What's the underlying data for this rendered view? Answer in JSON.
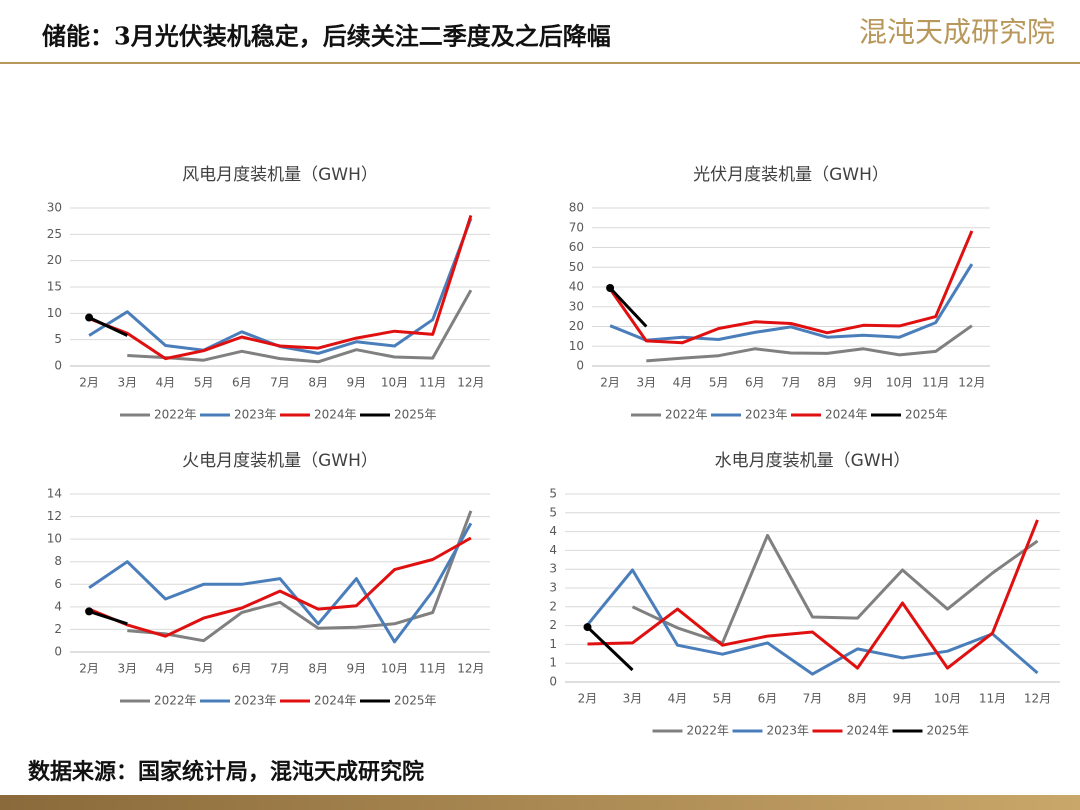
{
  "title": "储能：3月光伏装机稳定，后续关注二季度及之后降幅",
  "logo": "混沌天成研究院",
  "source": "数据来源：国家统计局，混沌天成研究院",
  "chart_data": [
    {
      "type": "line",
      "title": "风电月度装机量（GWH）",
      "categories": [
        "2月",
        "3月",
        "4月",
        "5月",
        "6月",
        "7月",
        "8月",
        "9月",
        "10月",
        "11月",
        "12月"
      ],
      "ylim": [
        0,
        30
      ],
      "yticks": [
        0,
        5,
        10,
        15,
        20,
        25,
        30
      ],
      "series": [
        {
          "name": "2022年",
          "color": "#808080",
          "values": [
            null,
            2.0,
            1.6,
            1.1,
            2.8,
            1.4,
            0.8,
            3.1,
            1.7,
            1.5,
            14.4
          ]
        },
        {
          "name": "2023年",
          "color": "#4a7ebb",
          "values": [
            5.8,
            10.3,
            3.9,
            3.0,
            6.5,
            3.7,
            2.4,
            4.6,
            3.8,
            8.8,
            28.0
          ]
        },
        {
          "name": "2024年",
          "color": "#e01010",
          "values": [
            9.0,
            6.2,
            1.4,
            2.9,
            5.5,
            3.8,
            3.4,
            5.3,
            6.6,
            6.0,
            28.6
          ]
        },
        {
          "name": "2025年",
          "color": "#000000",
          "values": [
            9.2,
            5.8,
            null,
            null,
            null,
            null,
            null,
            null,
            null,
            null,
            null
          ]
        }
      ]
    },
    {
      "type": "line",
      "title": "光伏月度装机量（GWH）",
      "categories": [
        "2月",
        "3月",
        "4月",
        "5月",
        "6月",
        "7月",
        "8月",
        "9月",
        "10月",
        "11月",
        "12月"
      ],
      "ylim": [
        0,
        80
      ],
      "yticks": [
        0,
        10,
        20,
        30,
        40,
        50,
        60,
        70,
        80
      ],
      "series": [
        {
          "name": "2022年",
          "color": "#808080",
          "values": [
            null,
            2.6,
            4.0,
            5.2,
            8.7,
            6.6,
            6.4,
            8.7,
            5.6,
            7.4,
            20.4
          ]
        },
        {
          "name": "2023年",
          "color": "#4a7ebb",
          "values": [
            20.4,
            13.0,
            14.6,
            13.4,
            17.0,
            19.8,
            14.6,
            15.6,
            14.6,
            22.0,
            51.6
          ]
        },
        {
          "name": "2024年",
          "color": "#e01010",
          "values": [
            39.0,
            12.7,
            11.8,
            19.0,
            22.4,
            21.5,
            16.8,
            20.6,
            20.3,
            25.0,
            68.4
          ]
        },
        {
          "name": "2025年",
          "color": "#000000",
          "values": [
            39.5,
            20.0,
            null,
            null,
            null,
            null,
            null,
            null,
            null,
            null,
            null
          ]
        }
      ]
    },
    {
      "type": "line",
      "title": "火电月度装机量（GWH）",
      "categories": [
        "2月",
        "3月",
        "4月",
        "5月",
        "6月",
        "7月",
        "8月",
        "9月",
        "10月",
        "11月",
        "12月"
      ],
      "ylim": [
        0,
        14
      ],
      "yticks": [
        0,
        2,
        4,
        6,
        8,
        10,
        12,
        14
      ],
      "series": [
        {
          "name": "2022年",
          "color": "#808080",
          "values": [
            null,
            1.9,
            1.6,
            1.0,
            3.5,
            4.4,
            2.1,
            2.2,
            2.5,
            3.5,
            12.5
          ]
        },
        {
          "name": "2023年",
          "color": "#4a7ebb",
          "values": [
            5.7,
            8.0,
            4.7,
            6.0,
            6.0,
            6.5,
            2.5,
            6.5,
            0.9,
            5.4,
            11.4
          ]
        },
        {
          "name": "2024年",
          "color": "#e01010",
          "values": [
            3.8,
            2.4,
            1.4,
            3.0,
            3.9,
            5.4,
            3.8,
            4.1,
            7.3,
            8.2,
            10.1
          ]
        },
        {
          "name": "2025年",
          "color": "#000000",
          "values": [
            3.6,
            2.5,
            null,
            null,
            null,
            null,
            null,
            null,
            null,
            null,
            null
          ]
        }
      ]
    },
    {
      "type": "line",
      "title": "水电月度装机量（GWH）",
      "categories": [
        "2月",
        "3月",
        "4月",
        "5月",
        "6月",
        "7月",
        "8月",
        "9月",
        "10月",
        "11月",
        "12月"
      ],
      "ylim": [
        0,
        5
      ],
      "yticks": [
        0,
        {
          "value": 0.5,
          "label": "1"
        },
        1,
        {
          "value": 1.5,
          "label": "2"
        },
        2,
        {
          "value": 2.5,
          "label": "3"
        },
        3,
        {
          "value": 3.5,
          "label": "4"
        },
        4,
        {
          "value": 4.5,
          "label": "5"
        },
        5
      ],
      "series": [
        {
          "name": "2022年",
          "color": "#808080",
          "values": [
            null,
            2.0,
            1.44,
            1.04,
            3.9,
            1.73,
            1.7,
            2.98,
            1.94,
            2.9,
            3.75
          ]
        },
        {
          "name": "2023年",
          "color": "#4a7ebb",
          "values": [
            1.52,
            2.98,
            0.98,
            0.74,
            1.04,
            0.21,
            0.88,
            0.64,
            0.82,
            1.28,
            0.24
          ]
        },
        {
          "name": "2024年",
          "color": "#e01010",
          "values": [
            1.01,
            1.04,
            1.94,
            0.98,
            1.22,
            1.33,
            0.37,
            2.1,
            0.37,
            1.3,
            4.31
          ]
        },
        {
          "name": "2025年",
          "color": "#000000",
          "values": [
            1.46,
            0.32,
            null,
            null,
            null,
            null,
            null,
            null,
            null,
            null,
            null
          ]
        }
      ]
    }
  ]
}
